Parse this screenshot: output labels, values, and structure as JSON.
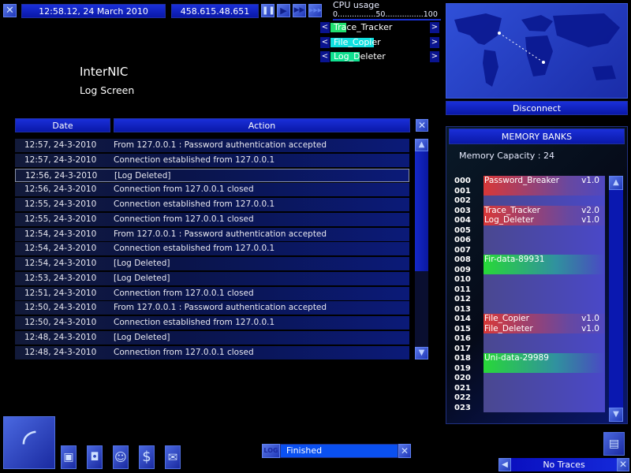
{
  "topbar": {
    "datetime": "12:58.12, 24 March 2010",
    "ip": "458.615.48.651",
    "speed_buttons": [
      "pause-icon",
      "play-icon",
      "fast-forward-icon",
      "fastest-icon"
    ]
  },
  "cpu": {
    "label": "CPU usage",
    "scale": "0................50................100",
    "programs": [
      {
        "name": "Trace_Tracker",
        "progress": 0.16,
        "color": "#20e070"
      },
      {
        "name": "File_Copier",
        "progress": 0.44,
        "color": "#10e0e0"
      },
      {
        "name": "Log_Deleter",
        "progress": 0.3,
        "color": "#10e090"
      }
    ],
    "left": "<",
    "right": ">"
  },
  "page": {
    "title": "InterNIC",
    "subtitle": "Log Screen"
  },
  "log": {
    "headers": {
      "date": "Date",
      "action": "Action"
    },
    "selected_index": 2,
    "scroll_fraction": 0.6,
    "rows": [
      {
        "date": "12:57, 24-3-2010",
        "action": "From 127.0.0.1 : Password authentication accepted"
      },
      {
        "date": "12:57, 24-3-2010",
        "action": "Connection established from 127.0.0.1"
      },
      {
        "date": "12:56, 24-3-2010",
        "action": "[Log Deleted]"
      },
      {
        "date": "12:56, 24-3-2010",
        "action": "Connection from 127.0.0.1 closed"
      },
      {
        "date": "12:55, 24-3-2010",
        "action": "Connection established from 127.0.0.1"
      },
      {
        "date": "12:55, 24-3-2010",
        "action": "Connection from 127.0.0.1 closed"
      },
      {
        "date": "12:54, 24-3-2010",
        "action": "From 127.0.0.1 : Password authentication accepted"
      },
      {
        "date": "12:54, 24-3-2010",
        "action": "Connection established from 127.0.0.1"
      },
      {
        "date": "12:54, 24-3-2010",
        "action": "[Log Deleted]"
      },
      {
        "date": "12:53, 24-3-2010",
        "action": "[Log Deleted]"
      },
      {
        "date": "12:51, 24-3-2010",
        "action": "Connection from 127.0.0.1 closed"
      },
      {
        "date": "12:50, 24-3-2010",
        "action": "From 127.0.0.1 : Password authentication accepted"
      },
      {
        "date": "12:50, 24-3-2010",
        "action": "Connection established from 127.0.0.1"
      },
      {
        "date": "12:48, 24-3-2010",
        "action": "[Log Deleted]"
      },
      {
        "date": "12:48, 24-3-2010",
        "action": "Connection from 127.0.0.1 closed"
      }
    ]
  },
  "map": {
    "disconnect": "Disconnect"
  },
  "memory": {
    "title": "MEMORY BANKS",
    "capacity": "Memory Capacity : 24",
    "slots": [
      "000",
      "001",
      "002",
      "003",
      "004",
      "005",
      "006",
      "007",
      "008",
      "009",
      "010",
      "011",
      "012",
      "013",
      "014",
      "015",
      "016",
      "017",
      "018",
      "019",
      "020",
      "021",
      "022",
      "023"
    ],
    "files": [
      {
        "name": "Password_Breaker",
        "version": "v1.0",
        "start": 0,
        "size": 2,
        "type": "program"
      },
      {
        "name": "Trace_Tracker",
        "version": "v2.0",
        "start": 3,
        "size": 1,
        "type": "program"
      },
      {
        "name": "Log_Deleter",
        "version": "v1.0",
        "start": 4,
        "size": 1,
        "type": "program"
      },
      {
        "name": "Fir-data-89931",
        "version": "",
        "start": 8,
        "size": 2,
        "type": "data"
      },
      {
        "name": "File_Copier",
        "version": "v1.0",
        "start": 14,
        "size": 1,
        "type": "program"
      },
      {
        "name": "File_Deleter",
        "version": "v1.0",
        "start": 15,
        "size": 1,
        "type": "program"
      },
      {
        "name": "Uni-data-29989",
        "version": "",
        "start": 18,
        "size": 2,
        "type": "data"
      }
    ]
  },
  "bottom": {
    "log_tag": "LOG",
    "status": "Finished",
    "traces": "No Traces",
    "icons": [
      "satellite-dish-icon",
      "computer-icon",
      "floppy-disk-icon",
      "person-icon",
      "dollar-icon",
      "mail-icon"
    ]
  }
}
